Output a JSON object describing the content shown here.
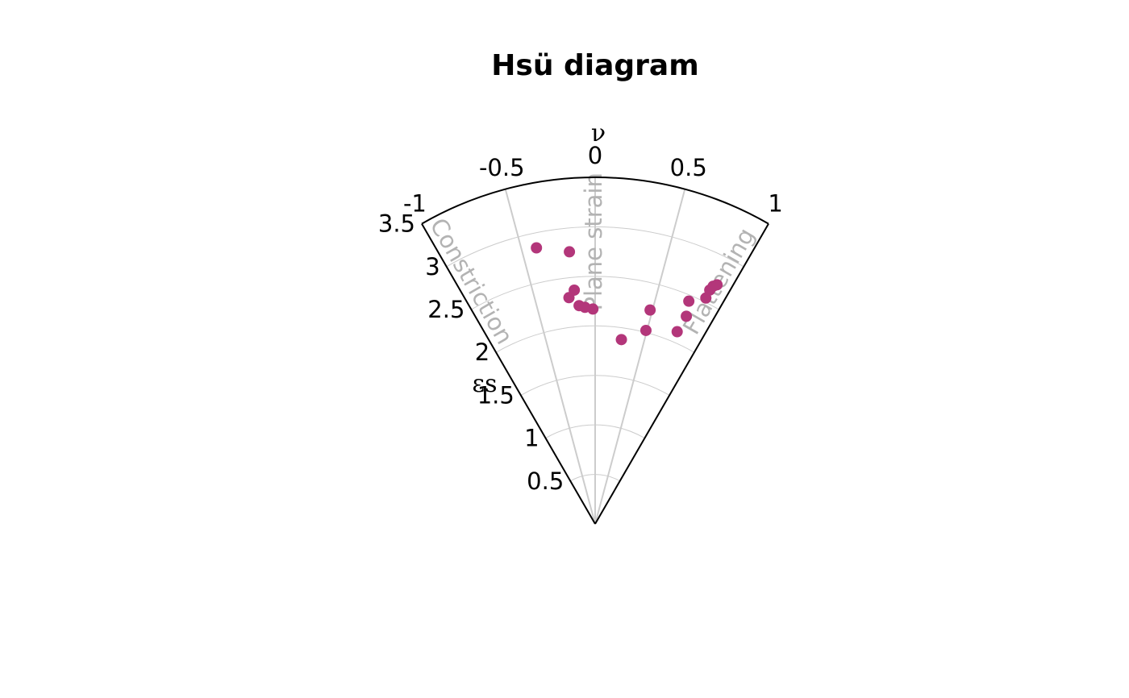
{
  "chart_data": {
    "type": "scatter",
    "projection": "polar-wedge",
    "title": "Hsü diagram",
    "angular_axis": {
      "label": "ν",
      "range": [
        -1,
        1
      ],
      "ticks": [
        -1,
        -0.5,
        0,
        0.5,
        1
      ],
      "tick_labels": [
        "-1",
        "-0.5",
        "0",
        "0.5",
        "1"
      ]
    },
    "radial_axis": {
      "label": "εs",
      "range": [
        0,
        3.5
      ],
      "ticks": [
        0.5,
        1,
        1.5,
        2,
        2.5,
        3,
        3.5
      ],
      "tick_labels": [
        "0.5",
        "1",
        "1.5",
        "2",
        "2.5",
        "3",
        "3.5"
      ]
    },
    "region_labels": {
      "constriction": "Constriction",
      "plane_strain": "Plane strain",
      "flattening": "Flattening"
    },
    "grid": true,
    "point_color": "#B3367A",
    "frame_color": "#000000",
    "grid_color": "#cccccc",
    "points": [
      {
        "nu": -0.4,
        "es": 2.85
      },
      {
        "nu": -0.18,
        "es": 2.76
      },
      {
        "nu": -0.22,
        "es": 2.3
      },
      {
        "nu": -0.17,
        "es": 2.37
      },
      {
        "nu": -0.14,
        "es": 2.21
      },
      {
        "nu": -0.09,
        "es": 2.19
      },
      {
        "nu": -0.02,
        "es": 2.17
      },
      {
        "nu": 0.27,
        "es": 1.88
      },
      {
        "nu": 0.48,
        "es": 2.23
      },
      {
        "nu": 0.49,
        "es": 2.02
      },
      {
        "nu": 0.77,
        "es": 2.11
      },
      {
        "nu": 0.79,
        "es": 2.29
      },
      {
        "nu": 0.76,
        "es": 2.44
      },
      {
        "nu": 0.87,
        "es": 2.54
      },
      {
        "nu": 0.87,
        "es": 2.63
      },
      {
        "nu": 0.88,
        "es": 2.68
      },
      {
        "nu": 0.9,
        "es": 2.71
      }
    ]
  }
}
